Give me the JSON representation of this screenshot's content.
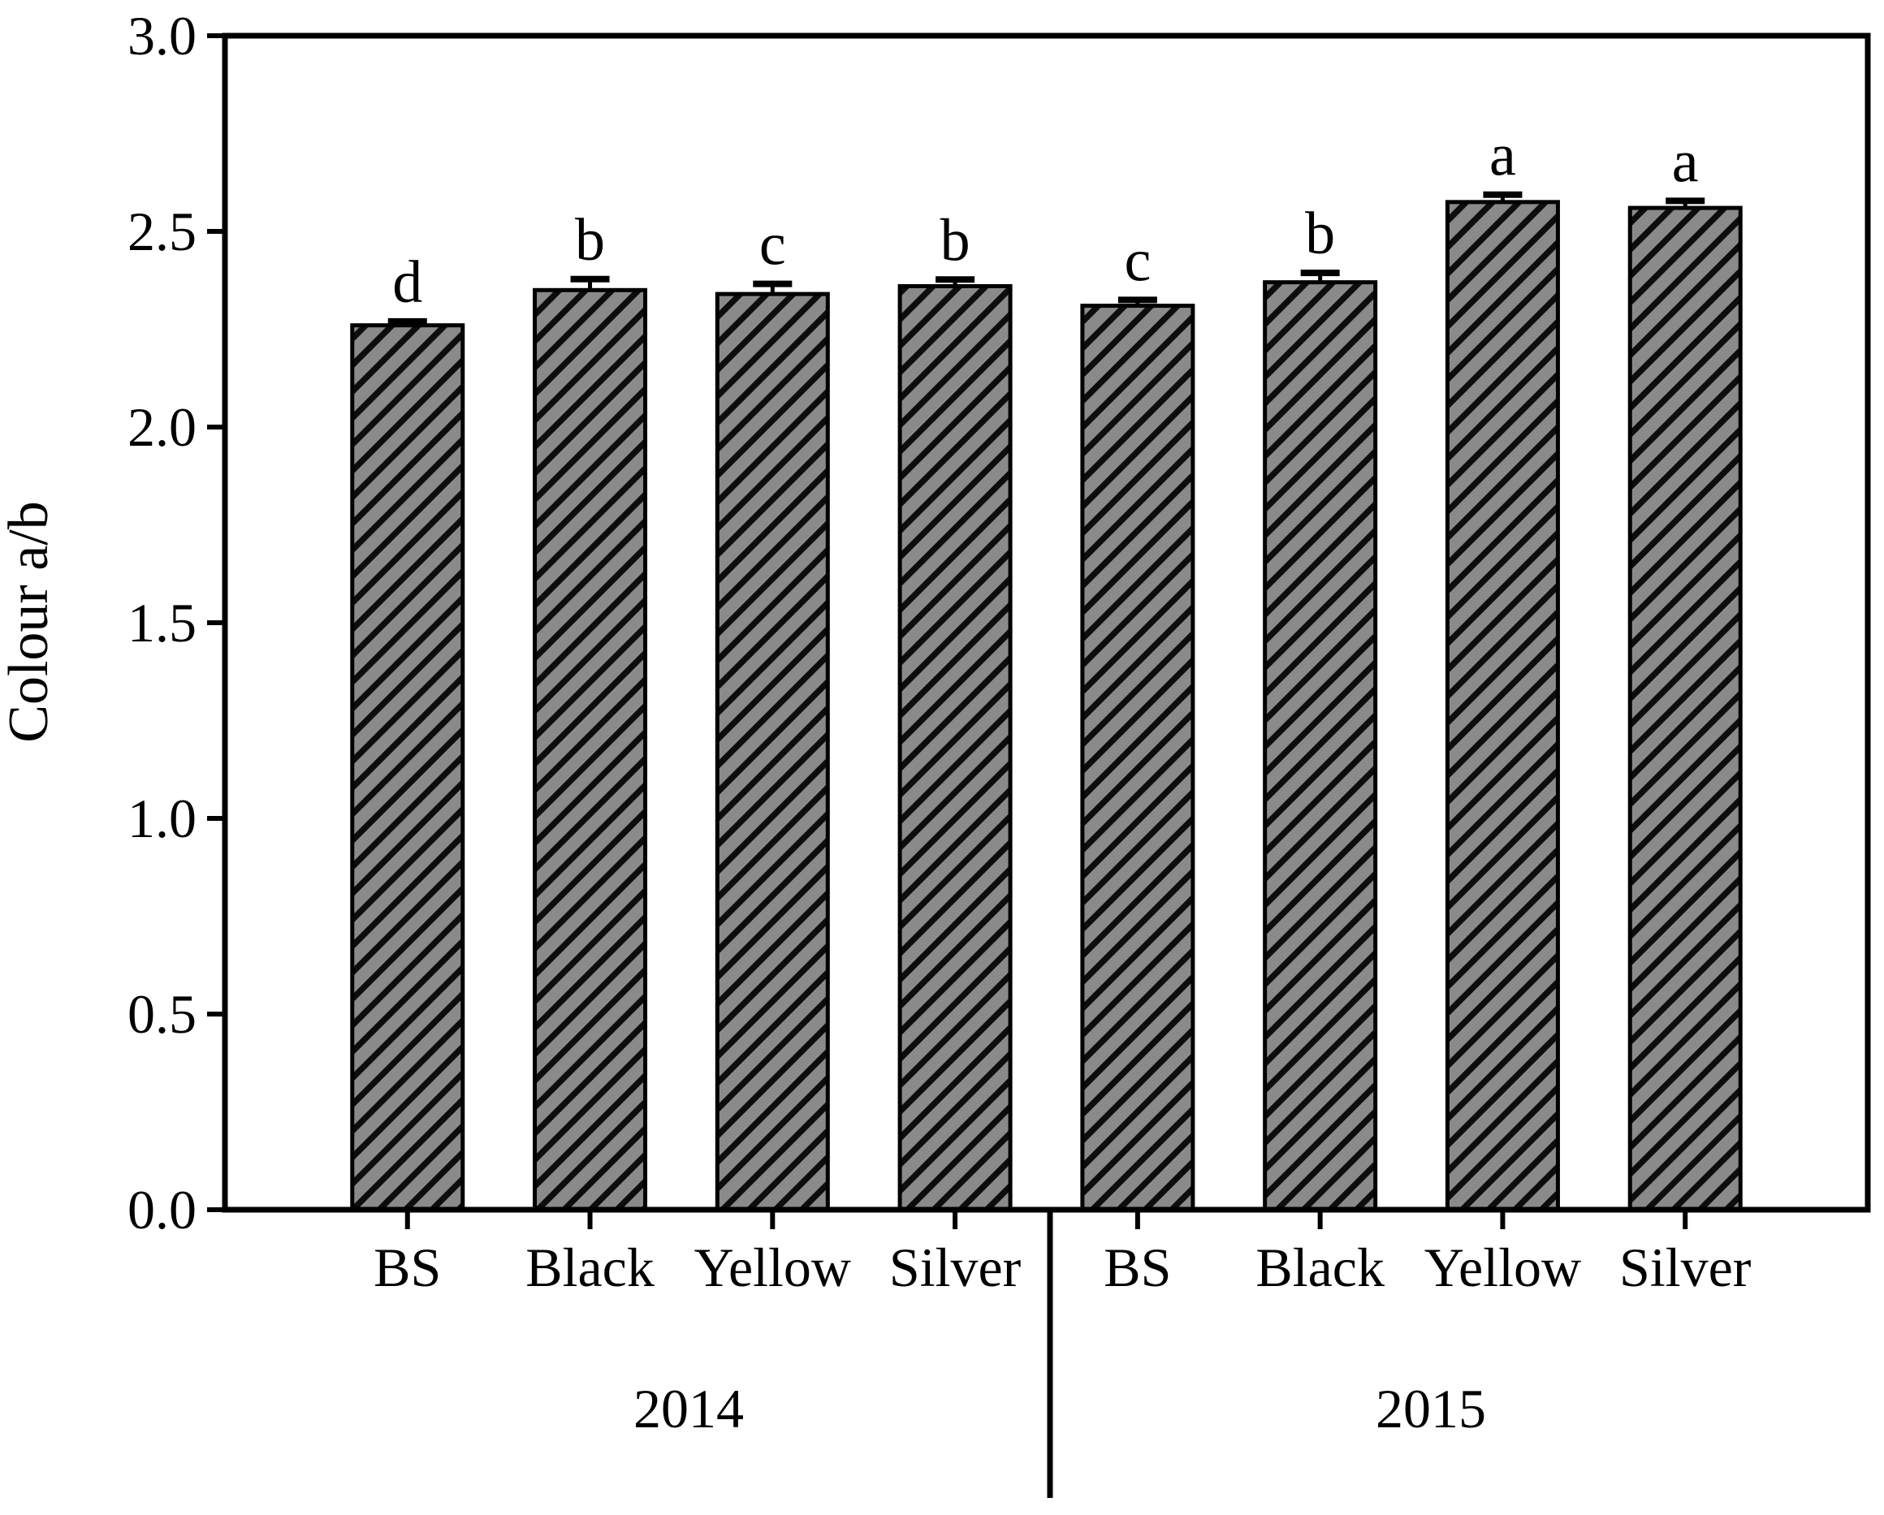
{
  "figure": {
    "background": "#ffffff",
    "frame_color": "#000000"
  },
  "chart_data": {
    "type": "bar",
    "title": "",
    "xlabel": "",
    "ylabel": "Colour a/b",
    "ylim": [
      0.0,
      3.0
    ],
    "ytick_step": 0.5,
    "ytick_labels": [
      "0.0",
      "0.5",
      "1.0",
      "1.5",
      "2.0",
      "2.5",
      "3.0"
    ],
    "ytick_values": [
      0.0,
      0.5,
      1.0,
      1.5,
      2.0,
      2.5,
      3.0
    ],
    "grid": false,
    "legend": "none",
    "bar_style": {
      "fill": "#8a8a8a",
      "hatch": "diagonal-forward",
      "hatch_color": "#0d0d0d",
      "border_color": "#000000"
    },
    "groups": [
      {
        "label": "2014",
        "categories": [
          "BS",
          "Black",
          "Yellow",
          "Silver"
        ],
        "values": [
          2.26,
          2.35,
          2.34,
          2.36
        ],
        "errors": [
          0.01,
          0.028,
          0.026,
          0.017
        ],
        "sig_letters": [
          "d",
          "b",
          "c",
          "b"
        ]
      },
      {
        "label": "2015",
        "categories": [
          "BS",
          "Black",
          "Yellow",
          "Silver"
        ],
        "values": [
          2.31,
          2.37,
          2.575,
          2.56
        ],
        "errors": [
          0.015,
          0.024,
          0.019,
          0.018
        ],
        "sig_letters": [
          "c",
          "b",
          "a",
          "a"
        ]
      }
    ]
  }
}
